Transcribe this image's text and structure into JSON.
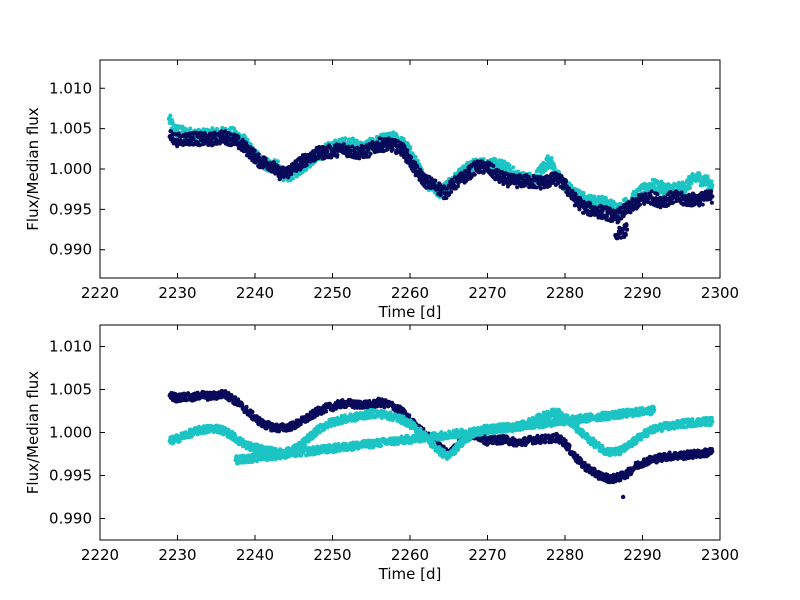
{
  "colors": {
    "dark_series": "#0a0a5a",
    "light_series": "#1cc4c4",
    "axes": "#000000",
    "background": "#ffffff"
  },
  "chart_data": [
    {
      "type": "scatter",
      "title": "",
      "xlabel": "Time [d]",
      "ylabel": "Flux/Median flux",
      "xlim": [
        2220,
        2300
      ],
      "ylim": [
        0.9865,
        1.0135
      ],
      "xticks": [
        "2220",
        "2230",
        "2240",
        "2250",
        "2260",
        "2270",
        "2280",
        "2290",
        "2300"
      ],
      "yticks": [
        "0.990",
        "0.995",
        "1.000",
        "1.005",
        "1.010"
      ],
      "grid": false,
      "series": [
        {
          "color": "#1cc4c4",
          "points": [
            [
              2228.9,
              1.0062
            ],
            [
              2229.6,
              1.0048
            ],
            [
              2231,
              1.0044
            ],
            [
              2233,
              1.0041
            ],
            [
              2235,
              1.0043
            ],
            [
              2237,
              1.0044
            ],
            [
              2238.5,
              1.0036
            ],
            [
              2239.5,
              1.0022
            ],
            [
              2241,
              1.0007
            ],
            [
              2243,
              1.0002
            ],
            [
              2244,
              0.999
            ],
            [
              2246,
              1.0002
            ],
            [
              2248,
              1.0018
            ],
            [
              2250,
              1.0027
            ],
            [
              2252,
              1.0032
            ],
            [
              2254,
              1.0026
            ],
            [
              2256,
              1.0034
            ],
            [
              2258,
              1.0038
            ],
            [
              2259.5,
              1.0028
            ],
            [
              2260.5,
              1.0012
            ],
            [
              2262,
              0.9984
            ],
            [
              2264,
              0.9972
            ],
            [
              2266,
              0.999
            ],
            [
              2268,
              1.0004
            ],
            [
              2270,
              1.0006
            ],
            [
              2272,
              1.0003
            ],
            [
              2274,
              0.999
            ],
            [
              2276,
              0.9986
            ],
            [
              2278,
              1.0012
            ],
            [
              2279,
              0.9991
            ],
            [
              2281,
              0.997
            ],
            [
              2283,
              0.996
            ],
            [
              2285,
              0.9958
            ],
            [
              2287,
              0.995
            ],
            [
              2289,
              0.9965
            ],
            [
              2291,
              0.998
            ],
            [
              2293,
              0.9975
            ],
            [
              2295,
              0.9975
            ],
            [
              2297,
              0.999
            ],
            [
              2299,
              0.998
            ]
          ]
        },
        {
          "color": "#0a0a5a",
          "points": [
            [
              2229,
              1.004
            ],
            [
              2230,
              1.0036
            ],
            [
              2232,
              1.0038
            ],
            [
              2234,
              1.0036
            ],
            [
              2236,
              1.004
            ],
            [
              2237.5,
              1.0035
            ],
            [
              2238.5,
              1.0028
            ],
            [
              2239.5,
              1.002
            ],
            [
              2240.5,
              1.001
            ],
            [
              2242,
              1.0006
            ],
            [
              2243,
              0.9995
            ],
            [
              2244,
              0.9995
            ],
            [
              2245.5,
              1.0005
            ],
            [
              2247,
              1.0015
            ],
            [
              2248.5,
              1.002
            ],
            [
              2250,
              1.0022
            ],
            [
              2251.5,
              1.0025
            ],
            [
              2253,
              1.002
            ],
            [
              2254.5,
              1.0022
            ],
            [
              2256,
              1.003
            ],
            [
              2257.5,
              1.003
            ],
            [
              2259,
              1.0025
            ],
            [
              2260,
              1.001
            ],
            [
              2261,
              0.9995
            ],
            [
              2262,
              0.9985
            ],
            [
              2263.5,
              0.9978
            ],
            [
              2264.5,
              0.997
            ],
            [
              2265.5,
              0.998
            ],
            [
              2267,
              0.999
            ],
            [
              2268.5,
              1.0002
            ],
            [
              2270,
              1.0002
            ],
            [
              2271.5,
              0.999
            ],
            [
              2273,
              0.9985
            ],
            [
              2275,
              0.9985
            ],
            [
              2277,
              0.9983
            ],
            [
              2279,
              0.9988
            ],
            [
              2280,
              0.998
            ],
            [
              2281,
              0.9965
            ],
            [
              2282.5,
              0.9952
            ],
            [
              2284,
              0.9948
            ],
            [
              2285.5,
              0.9945
            ],
            [
              2286.5,
              0.994
            ],
            [
              2288,
              0.995
            ],
            [
              2289.5,
              0.996
            ],
            [
              2291,
              0.9965
            ],
            [
              2292.5,
              0.996
            ],
            [
              2294,
              0.9965
            ],
            [
              2295.5,
              0.9962
            ],
            [
              2297,
              0.9962
            ],
            [
              2299,
              0.9966
            ],
            [
              2286.5,
              0.9918
            ],
            [
              2288,
              0.9925
            ]
          ]
        }
      ]
    },
    {
      "type": "scatter",
      "title": "",
      "xlabel": "Time [d]",
      "ylabel": "Flux/Median flux",
      "xlim": [
        2220,
        2300
      ],
      "ylim": [
        0.9875,
        1.0125
      ],
      "xticks": [
        "2220",
        "2230",
        "2240",
        "2250",
        "2260",
        "2270",
        "2280",
        "2290",
        "2300"
      ],
      "yticks": [
        "0.990",
        "0.995",
        "1.000",
        "1.005",
        "1.010"
      ],
      "grid": false,
      "series": [
        {
          "color": "#0a0a5a",
          "points": [
            [
              2229,
              1.0043
            ],
            [
              2230,
              1.004
            ],
            [
              2231,
              1.0042
            ],
            [
              2232,
              1.004
            ],
            [
              2233,
              1.0044
            ],
            [
              2234,
              1.0042
            ],
            [
              2235,
              1.0043
            ],
            [
              2236,
              1.0045
            ],
            [
              2237,
              1.004
            ],
            [
              2238,
              1.0033
            ],
            [
              2239,
              1.0025
            ],
            [
              2240,
              1.0017
            ],
            [
              2241,
              1.001
            ],
            [
              2242,
              1.0007
            ],
            [
              2243,
              1.0005
            ],
            [
              2244,
              1.0006
            ],
            [
              2245,
              1.0008
            ],
            [
              2246,
              1.0013
            ],
            [
              2247,
              1.0018
            ],
            [
              2248,
              1.0024
            ],
            [
              2249,
              1.0028
            ],
            [
              2250,
              1.003
            ],
            [
              2251,
              1.0033
            ],
            [
              2252,
              1.0034
            ],
            [
              2253,
              1.0032
            ],
            [
              2254,
              1.0033
            ],
            [
              2255,
              1.0032
            ],
            [
              2256,
              1.0035
            ],
            [
              2257,
              1.0033
            ],
            [
              2258,
              1.003
            ],
            [
              2259,
              1.0024
            ],
            [
              2260,
              1.0015
            ],
            [
              2261,
              1.0005
            ],
            [
              2262,
              0.9998
            ],
            [
              2263,
              0.999
            ],
            [
              2264,
              0.9982
            ],
            [
              2265,
              0.9975
            ],
            [
              2266,
              0.9985
            ],
            [
              2267,
              0.9993
            ],
            [
              2268,
              0.9997
            ],
            [
              2269,
              0.9995
            ],
            [
              2270,
              0.999
            ],
            [
              2271,
              0.9991
            ],
            [
              2272,
              0.9992
            ],
            [
              2273,
              0.999
            ],
            [
              2274,
              0.9988
            ],
            [
              2275,
              0.999
            ],
            [
              2276,
              0.9992
            ],
            [
              2277,
              0.9992
            ],
            [
              2278,
              0.9993
            ],
            [
              2279,
              0.9994
            ],
            [
              2280,
              0.9988
            ],
            [
              2281,
              0.9975
            ],
            [
              2282,
              0.9965
            ],
            [
              2283,
              0.9958
            ],
            [
              2284,
              0.9952
            ],
            [
              2285,
              0.9948
            ],
            [
              2286,
              0.9946
            ],
            [
              2287,
              0.9948
            ],
            [
              2288,
              0.9952
            ],
            [
              2289,
              0.996
            ],
            [
              2290,
              0.9965
            ],
            [
              2291,
              0.9968
            ],
            [
              2292,
              0.997
            ],
            [
              2293,
              0.9972
            ],
            [
              2294,
              0.9973
            ],
            [
              2295,
              0.9973
            ],
            [
              2296,
              0.9974
            ],
            [
              2297,
              0.9975
            ],
            [
              2298,
              0.9976
            ],
            [
              2299,
              0.9978
            ],
            [
              2287.5,
              0.9925
            ]
          ]
        },
        {
          "color": "#1cc4c4",
          "points": [
            [
              2229,
              0.999
            ],
            [
              2230,
              0.9993
            ],
            [
              2231,
              0.9997
            ],
            [
              2232,
              1.0
            ],
            [
              2233,
              1.0003
            ],
            [
              2234,
              1.0004
            ],
            [
              2235,
              1.0005
            ],
            [
              2236,
              1.0002
            ],
            [
              2237,
              0.9997
            ],
            [
              2238,
              0.999
            ],
            [
              2239,
              0.9985
            ],
            [
              2240,
              0.9982
            ],
            [
              2241,
              0.998
            ],
            [
              2242,
              0.9978
            ],
            [
              2243,
              0.9976
            ],
            [
              2244,
              0.9977
            ],
            [
              2245,
              0.998
            ],
            [
              2246,
              0.9986
            ],
            [
              2247,
              0.9994
            ],
            [
              2248,
              1.0002
            ],
            [
              2249,
              1.0008
            ],
            [
              2250,
              1.0012
            ],
            [
              2251,
              1.0015
            ],
            [
              2252,
              1.0016
            ],
            [
              2253,
              1.0018
            ],
            [
              2254,
              1.002
            ],
            [
              2255,
              1.0022
            ],
            [
              2256,
              1.0022
            ],
            [
              2257,
              1.002
            ],
            [
              2258,
              1.0018
            ],
            [
              2259,
              1.0015
            ],
            [
              2260,
              1.001
            ],
            [
              2261,
              1.0003
            ],
            [
              2262,
              0.9995
            ],
            [
              2263,
              0.9985
            ],
            [
              2264,
              0.9977
            ],
            [
              2265,
              0.9972
            ],
            [
              2266,
              0.9982
            ],
            [
              2267,
              0.9992
            ],
            [
              2268,
              0.9998
            ],
            [
              2269,
              1.0002
            ],
            [
              2270,
              1.0004
            ],
            [
              2271,
              1.0004
            ],
            [
              2272,
              1.0006
            ],
            [
              2273,
              1.0005
            ],
            [
              2274,
              1.0007
            ],
            [
              2275,
              1.001
            ],
            [
              2276,
              1.0014
            ],
            [
              2277,
              1.0018
            ],
            [
              2278,
              1.0022
            ],
            [
              2279,
              1.0023
            ],
            [
              2280,
              1.0018
            ],
            [
              2281,
              1.001
            ],
            [
              2282,
              1.0
            ],
            [
              2283,
              0.9993
            ],
            [
              2284,
              0.9986
            ],
            [
              2285,
              0.998
            ],
            [
              2286,
              0.9977
            ],
            [
              2287,
              0.9978
            ],
            [
              2288,
              0.9983
            ],
            [
              2289,
              0.999
            ],
            [
              2290,
              0.9997
            ],
            [
              2291,
              1.0002
            ],
            [
              2292,
              1.0005
            ],
            [
              2293,
              1.0007
            ],
            [
              2294,
              1.0008
            ],
            [
              2295,
              1.001
            ],
            [
              2296,
              1.0011
            ],
            [
              2297,
              1.0012
            ],
            [
              2298,
              1.0013
            ],
            [
              2299,
              1.0013
            ],
            [
              2237.5,
              0.9968
            ],
            [
              2291.5,
              1.0026
            ]
          ]
        }
      ]
    }
  ]
}
